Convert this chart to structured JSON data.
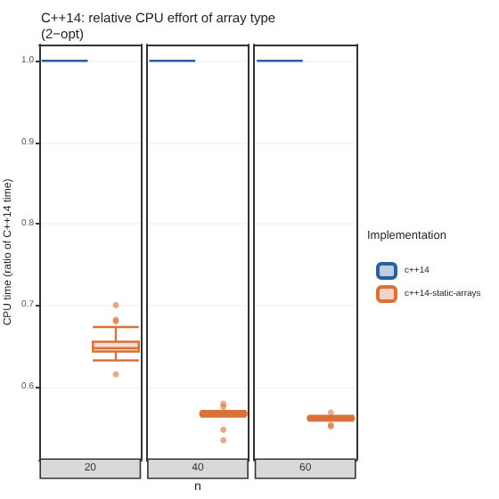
{
  "chart_data": {
    "type": "box",
    "title": "C++14: relative CPU effort of array type",
    "subtitle": "(2−opt)",
    "xlabel": "n",
    "ylabel": "CPU time (ratio of C++14 time)",
    "legend_title": "Implementation",
    "legend": "right",
    "categories": [
      "20",
      "40",
      "60"
    ],
    "ylim": [
      0.51,
      1.02
    ],
    "yticks": [
      0.6,
      0.7,
      0.8,
      0.9,
      {
        "value": 1.0,
        "label": "1.0"
      }
    ],
    "grid": "y",
    "series": [
      {
        "name": "c++14",
        "color": "#2b5f9e",
        "boxes": [
          {
            "low": 1,
            "q1": 1,
            "median": 1,
            "q3": 1,
            "high": 1
          },
          {
            "low": 1,
            "q1": 1,
            "median": 1,
            "q3": 1,
            "high": 1
          },
          {
            "low": 1,
            "q1": 1,
            "median": 1,
            "q3": 1,
            "high": 1
          }
        ]
      },
      {
        "name": "c++14-static-arrays",
        "color": "#d9713a",
        "boxes": [
          {
            "low": 0.632,
            "q1": 0.643,
            "median": 0.647,
            "q3": 0.655,
            "high": 0.673,
            "outliers": [
              0.615,
              0.68,
              0.682,
              0.7
            ]
          },
          {
            "low": 0.563,
            "q1": 0.565,
            "median": 0.566,
            "q3": 0.568,
            "high": 0.57,
            "outliers": [
              0.534,
              0.547,
              0.575,
              0.579
            ]
          },
          {
            "low": 0.558,
            "q1": 0.56,
            "median": 0.561,
            "q3": 0.562,
            "high": 0.564,
            "outliers": [
              0.551,
              0.553,
              0.568
            ]
          }
        ]
      }
    ]
  }
}
